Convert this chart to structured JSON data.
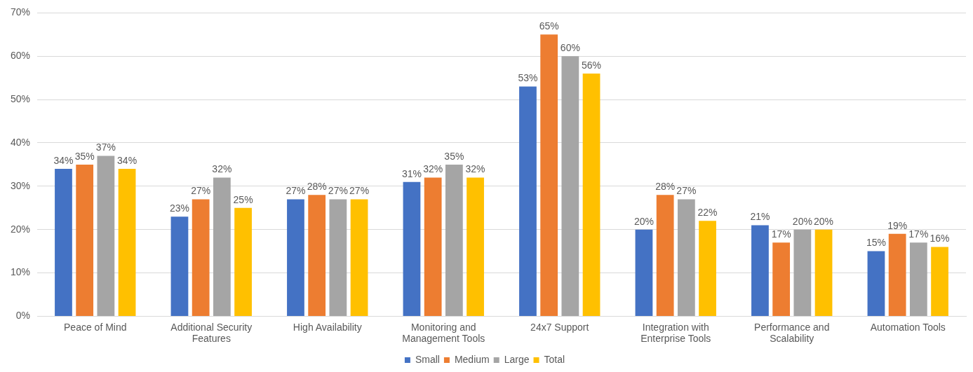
{
  "chart_data": {
    "type": "bar",
    "categories": [
      "Peace of Mind",
      "Additional Security Features",
      "High Availability",
      "Monitoring and Management Tools",
      "24x7 Support",
      "Integration with Enterprise Tools",
      "Performance and Scalability",
      "Automation Tools"
    ],
    "series": [
      {
        "name": "Small",
        "color": "#4472c4",
        "values": [
          34,
          23,
          27,
          31,
          53,
          20,
          21,
          15
        ],
        "value_labels": [
          "34%",
          "23%",
          "27%",
          "31%",
          "53%",
          "20%",
          "21%",
          "15%"
        ]
      },
      {
        "name": "Medium",
        "color": "#ed7d31",
        "values": [
          35,
          27,
          28,
          32,
          65,
          28,
          17,
          19
        ],
        "value_labels": [
          "35%",
          "27%",
          "28%",
          "32%",
          "65%",
          "28%",
          "17%",
          "19%"
        ]
      },
      {
        "name": "Large",
        "color": "#a5a5a5",
        "values": [
          37,
          32,
          27,
          35,
          60,
          27,
          20,
          17
        ],
        "value_labels": [
          "37%",
          "32%",
          "27%",
          "35%",
          "60%",
          "27%",
          "20%",
          "17%"
        ]
      },
      {
        "name": "Total",
        "color": "#ffc000",
        "values": [
          34,
          25,
          27,
          32,
          56,
          22,
          20,
          16
        ],
        "value_labels": [
          "34%",
          "25%",
          "27%",
          "32%",
          "56%",
          "22%",
          "20%",
          "16%"
        ]
      }
    ],
    "ylim": [
      0,
      70
    ],
    "yticks": [
      {
        "value": 0,
        "label": "0%"
      },
      {
        "value": 10,
        "label": "10%"
      },
      {
        "value": 20,
        "label": "20%"
      },
      {
        "value": 30,
        "label": "30%"
      },
      {
        "value": 40,
        "label": "40%"
      },
      {
        "value": 50,
        "label": "50%"
      },
      {
        "value": 60,
        "label": "60%"
      },
      {
        "value": 70,
        "label": "70%"
      }
    ],
    "grid": "y",
    "legend": "bottom"
  }
}
